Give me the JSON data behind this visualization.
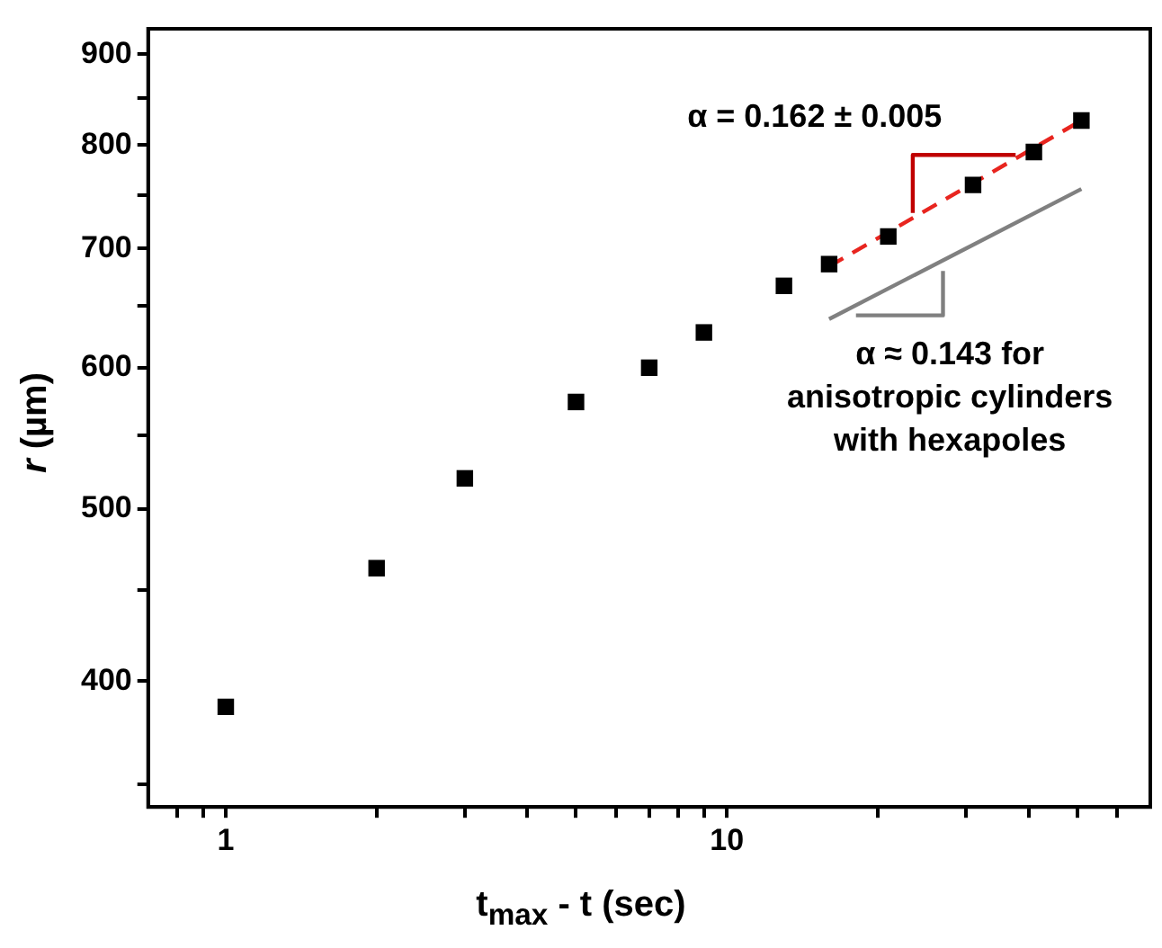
{
  "chart_data": {
    "type": "scatter",
    "xlabel": "t$_{max}$ - t (sec)",
    "ylabel": "r (µm)",
    "log": "xy",
    "grid": false,
    "legend": false,
    "marker": "square",
    "xlim": [
      0.7,
      70
    ],
    "ylim": [
      340,
      930
    ],
    "xticks": [
      {
        "value": 0.8,
        "label": null
      },
      {
        "value": 0.9,
        "label": null
      },
      1,
      {
        "value": 2,
        "label": null
      },
      {
        "value": 3,
        "label": null
      },
      {
        "value": 4,
        "label": null
      },
      {
        "value": 5,
        "label": null
      },
      {
        "value": 6,
        "label": null
      },
      {
        "value": 7,
        "label": null
      },
      {
        "value": 8,
        "label": null
      },
      {
        "value": 9,
        "label": null
      },
      10,
      {
        "value": 20,
        "label": null
      },
      {
        "value": 30,
        "label": null
      },
      {
        "value": 40,
        "label": null
      },
      {
        "value": 50,
        "label": null
      },
      {
        "value": 60,
        "label": null
      }
    ],
    "yticks": [
      {
        "value": 350,
        "label": null
      },
      400,
      {
        "value": 450,
        "label": null
      },
      500,
      {
        "value": 550,
        "label": null
      },
      600,
      {
        "value": 650,
        "label": null
      },
      700,
      {
        "value": 750,
        "label": null
      },
      800,
      {
        "value": 850,
        "label": null
      },
      900
    ],
    "series": [
      {
        "color": "#000000",
        "x": [
          1,
          2,
          3,
          5,
          7,
          9,
          13,
          16,
          21,
          31,
          41,
          51
        ],
        "values": [
          387,
          463,
          520,
          574,
          600,
          628,
          667,
          686,
          711,
          760,
          793,
          826
        ]
      },
      {
        "type": "line",
        "color": "#e8251f",
        "line_style": "dashed",
        "marker": "none",
        "x": [
          16,
          51
        ],
        "values": [
          684,
          826
        ]
      },
      {
        "type": "line",
        "color": "#808080",
        "line_style": "solid",
        "marker": "none",
        "x": [
          16,
          51
        ],
        "values": [
          639,
          756
        ]
      },
      {
        "type": "line",
        "color": "#c00000",
        "line_style": "solid",
        "marker": "none",
        "x": [
          23.5,
          23.5,
          37.7
        ],
        "values": [
          733,
          790,
          790
        ]
      },
      {
        "type": "line",
        "color": "#808080",
        "line_style": "solid",
        "marker": "none",
        "x": [
          18.1,
          27,
          27
        ],
        "values": [
          642,
          642,
          680
        ]
      }
    ],
    "annotations": [
      "α = 0.162 ± 0.005",
      "α ≈ 0.143 for\nanisotropic cylinders\nwith hexapoles"
    ]
  }
}
